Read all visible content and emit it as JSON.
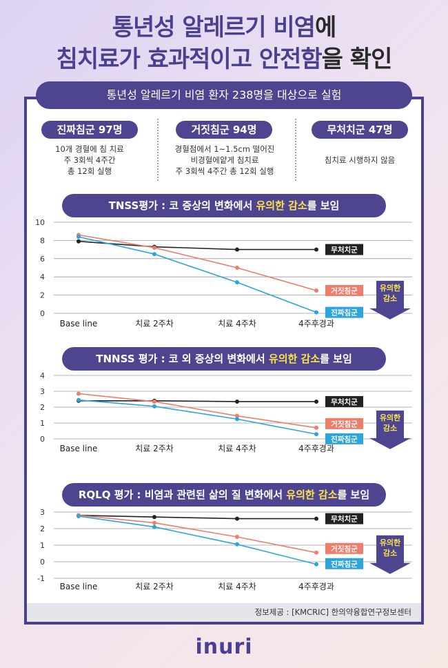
{
  "title": {
    "line1": "통년성 알레르기 비염",
    "line1_suffix": "에",
    "line2": "침치료가 효과적이고 안전함",
    "line2_suffix": "을 확인"
  },
  "banner": "통년성 알레르기 비염 환자 238명을 대상으로 실험",
  "groups": [
    {
      "title": "진짜침군 97명",
      "desc": [
        "10개 경혈에 침 치료",
        "주 3회씩 4주간",
        "총 12회 실행"
      ]
    },
    {
      "title": "거짓침군 94명",
      "desc": [
        "경혈점에서 1~1.5cm 떨어진",
        "비경혈에얕게 침치료",
        "주 3회씩 4주간 총 12회 실행"
      ]
    },
    {
      "title": "무처치군 47명",
      "desc": [
        "침치료 시행하지 않음"
      ]
    }
  ],
  "sections": [
    {
      "title_pre": "TNSS평가 : 코 증상의 변화에서 ",
      "title_hl": "유의한 감소",
      "title_post": "를 보임"
    },
    {
      "title_pre": "TNNSS 평가 : 코 외 증상의 변화에서 ",
      "title_hl": "유의한 감소",
      "title_post": "를 보임"
    },
    {
      "title_pre": "RQLQ 평가 : 비염과 관련된 삶의 질 변화에서 ",
      "title_hl": "유의한 감소",
      "title_post": "를 보임"
    }
  ],
  "significance_label": [
    "유의한",
    "감소"
  ],
  "colors": {
    "untreated": "#222222",
    "sham": "#f07c6c",
    "real": "#2ba5dc",
    "accent": "#4e4590",
    "highlight": "#fde24a"
  },
  "chart_data": [
    {
      "type": "line",
      "categories": [
        "Base line",
        "치료 2주차",
        "치료 4주차",
        "4주후경과"
      ],
      "ylim": [
        0,
        10
      ],
      "yticks": [
        0,
        2,
        4,
        6,
        8,
        10
      ],
      "series": [
        {
          "name": "무처치군",
          "values": [
            7.9,
            7.3,
            7.0,
            7.0
          ]
        },
        {
          "name": "거짓침군",
          "values": [
            8.6,
            7.2,
            5.0,
            2.5
          ]
        },
        {
          "name": "진짜침군",
          "values": [
            8.4,
            6.5,
            3.4,
            0.1
          ]
        }
      ]
    },
    {
      "type": "line",
      "categories": [
        "Base line",
        "치료 2주차",
        "치료 4주차",
        "4주후경과"
      ],
      "ylim": [
        0,
        4
      ],
      "yticks": [
        0,
        1,
        2,
        3,
        4
      ],
      "series": [
        {
          "name": "무처치군",
          "values": [
            2.4,
            2.4,
            2.35,
            2.35
          ]
        },
        {
          "name": "거짓침군",
          "values": [
            2.85,
            2.35,
            1.45,
            0.7
          ]
        },
        {
          "name": "진짜침군",
          "values": [
            2.45,
            2.05,
            1.25,
            0.3
          ]
        }
      ]
    },
    {
      "type": "line",
      "categories": [
        "Base line",
        "치료 2주차",
        "치료 4주차",
        "4주후경과"
      ],
      "ylim": [
        -1,
        3
      ],
      "yticks": [
        -1,
        0,
        1,
        2,
        3
      ],
      "series": [
        {
          "name": "무처치군",
          "values": [
            2.8,
            2.7,
            2.6,
            2.6
          ]
        },
        {
          "name": "거짓침군",
          "values": [
            2.8,
            2.35,
            1.5,
            0.55
          ]
        },
        {
          "name": "진짜침군",
          "values": [
            2.75,
            2.1,
            1.05,
            -0.15
          ]
        }
      ]
    }
  ],
  "footer": "정보제공 : [KMCRIC] 한의약융합연구정보센터",
  "logo": "inuri"
}
